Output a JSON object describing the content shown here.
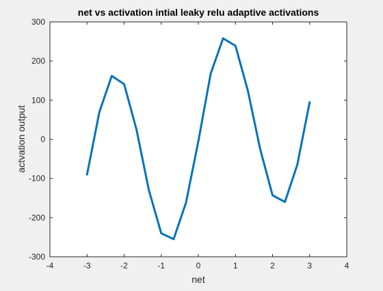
{
  "chart_data": {
    "type": "line",
    "title": "net vs activation intial leaky relu adaptive activations",
    "xlabel": "net",
    "ylabel": "actvation output",
    "xlim": [
      -4,
      4
    ],
    "ylim": [
      -300,
      300
    ],
    "xticks": [
      -4,
      -3,
      -2,
      -1,
      0,
      1,
      2,
      3,
      4
    ],
    "yticks": [
      -300,
      -200,
      -100,
      0,
      100,
      200,
      300
    ],
    "xtick_labels": [
      "-4",
      "-3",
      "-2",
      "-1",
      "0",
      "1",
      "2",
      "3",
      "4"
    ],
    "ytick_labels": [
      "-300",
      "-200",
      "-100",
      "0",
      "100",
      "200",
      "300"
    ],
    "grid": false,
    "box": true,
    "series": [
      {
        "color": "#0072bd",
        "x": [
          -3,
          -2.667,
          -2.333,
          -2,
          -1.667,
          -1.333,
          -1,
          -0.667,
          -0.333,
          0,
          0.333,
          0.667,
          1,
          1.333,
          1.667,
          2,
          2.333,
          2.667,
          3
        ],
        "y": [
          -90,
          70,
          162,
          141,
          25,
          -130,
          -240,
          -255,
          -162,
          -5,
          168,
          258,
          239,
          125,
          -25,
          -143,
          -160,
          -65,
          95
        ]
      }
    ]
  },
  "colors": {
    "figure_background": "#f0f0f0",
    "axes_background": "#ffffff",
    "axes_color": "#262626",
    "line_color": "#0072bd"
  }
}
